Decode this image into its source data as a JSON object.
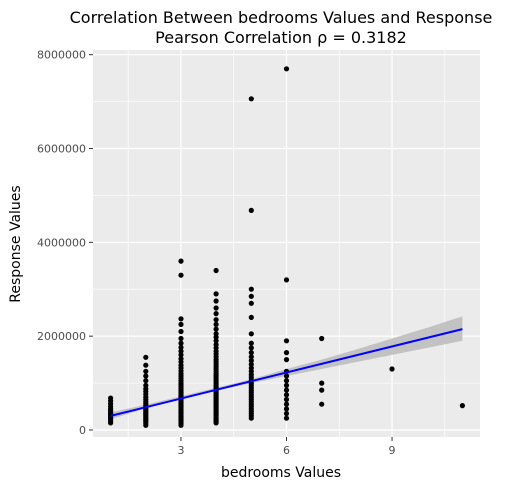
{
  "chart_data": {
    "type": "scatter",
    "title": "Correlation Between bedrooms Values and Response",
    "subtitle": "Pearson Correlation ρ = 0.3182",
    "xlabel": "bedrooms Values",
    "ylabel": "Response Values",
    "xlim": [
      0.5,
      11.5
    ],
    "ylim": [
      -150000,
      8100000
    ],
    "x_ticks": [
      3,
      6,
      9
    ],
    "y_ticks": [
      0,
      2000000,
      4000000,
      6000000,
      8000000
    ],
    "y_tick_labels": [
      "0",
      "2000000",
      "4000000",
      "6000000",
      "8000000"
    ],
    "grid": true,
    "colors": {
      "points": "#000000",
      "fit_line": "#0000ff",
      "confidence_band": "#bebebe",
      "panel": "#ebebeb",
      "grid": "#ffffff"
    },
    "fit_line": {
      "x": [
        1,
        11
      ],
      "y": [
        300000,
        2150000
      ]
    },
    "confidence_band": {
      "x": [
        1,
        2,
        3,
        4,
        5,
        6,
        7,
        8,
        9,
        10,
        11
      ],
      "lower": [
        230000,
        460000,
        660000,
        840000,
        1000000,
        1150000,
        1300000,
        1450000,
        1600000,
        1750000,
        1900000
      ],
      "upper": [
        370000,
        540000,
        720000,
        900000,
        1080000,
        1300000,
        1500000,
        1720000,
        1950000,
        2180000,
        2420000
      ]
    },
    "points": [
      {
        "x": 1,
        "y": [
          150000,
          190000,
          230000,
          260000,
          290000,
          320000,
          350000,
          380000,
          410000,
          450000,
          500000,
          560000,
          620000,
          680000
        ]
      },
      {
        "x": 2,
        "y": [
          100000,
          140000,
          180000,
          210000,
          240000,
          270000,
          300000,
          330000,
          360000,
          390000,
          420000,
          450000,
          480000,
          520000,
          560000,
          600000,
          650000,
          700000,
          760000,
          820000,
          880000,
          950000,
          1050000,
          1150000,
          1250000,
          1380000,
          1550000
        ]
      },
      {
        "x": 3,
        "y": [
          100000,
          140000,
          170000,
          200000,
          230000,
          260000,
          290000,
          320000,
          350000,
          380000,
          410000,
          440000,
          470000,
          500000,
          530000,
          560000,
          590000,
          620000,
          650000,
          680000,
          710000,
          740000,
          770000,
          800000,
          840000,
          880000,
          920000,
          960000,
          1000000,
          1050000,
          1100000,
          1150000,
          1200000,
          1260000,
          1320000,
          1380000,
          1450000,
          1520000,
          1600000,
          1680000,
          1760000,
          1850000,
          1950000,
          2100000,
          2250000,
          2370000,
          3300000,
          3600000
        ]
      },
      {
        "x": 4,
        "y": [
          150000,
          180000,
          210000,
          240000,
          270000,
          300000,
          330000,
          360000,
          390000,
          420000,
          450000,
          480000,
          510000,
          540000,
          570000,
          600000,
          630000,
          660000,
          690000,
          720000,
          750000,
          780000,
          810000,
          840000,
          870000,
          900000,
          930000,
          960000,
          1000000,
          1040000,
          1080000,
          1120000,
          1160000,
          1200000,
          1250000,
          1300000,
          1350000,
          1400000,
          1450000,
          1500000,
          1560000,
          1620000,
          1680000,
          1750000,
          1820000,
          1900000,
          1980000,
          2050000,
          2150000,
          2250000,
          2350000,
          2480000,
          2600000,
          2750000,
          2900000,
          3400000
        ]
      },
      {
        "x": 5,
        "y": [
          250000,
          300000,
          350000,
          400000,
          450000,
          500000,
          550000,
          600000,
          650000,
          700000,
          750000,
          800000,
          850000,
          900000,
          950000,
          1000000,
          1060000,
          1120000,
          1180000,
          1250000,
          1320000,
          1400000,
          1480000,
          1560000,
          1650000,
          1750000,
          1850000,
          2050000,
          2400000,
          2700000,
          2850000,
          3000000,
          4680000,
          7060000
        ]
      },
      {
        "x": 6,
        "y": [
          250000,
          350000,
          450000,
          550000,
          650000,
          750000,
          850000,
          950000,
          1050000,
          1150000,
          1250000,
          1500000,
          1650000,
          1900000,
          3200000,
          7700000
        ]
      },
      {
        "x": 7,
        "y": [
          550000,
          850000,
          1000000,
          1950000
        ]
      },
      {
        "x": 9,
        "y": [
          1300000
        ]
      },
      {
        "x": 11,
        "y": [
          520000
        ]
      }
    ]
  }
}
